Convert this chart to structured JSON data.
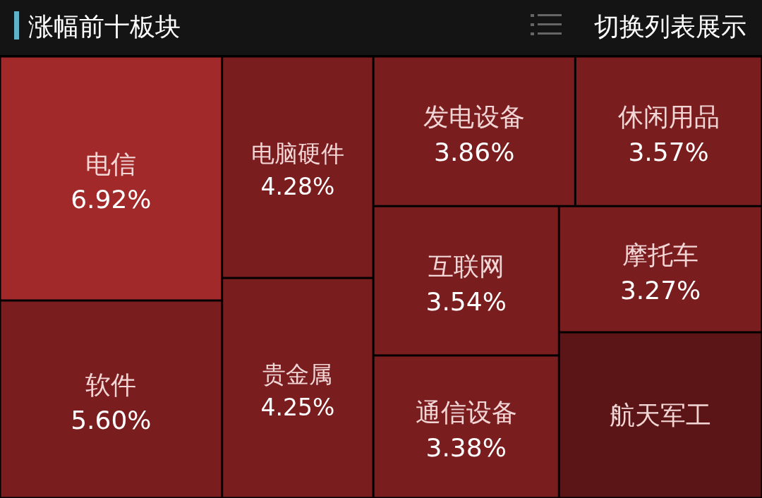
{
  "chart_data": {
    "type": "other",
    "title": "涨幅前十板块",
    "annotations": [
      "切换列表展示"
    ],
    "categories": [
      "电信",
      "软件",
      "电脑硬件",
      "贵金属",
      "发电设备",
      "休闲用品",
      "互联网",
      "通信设备",
      "摩托车",
      "航天军工"
    ],
    "values": [
      6.92,
      5.6,
      4.28,
      4.25,
      3.86,
      3.57,
      3.54,
      3.38,
      3.27,
      null
    ],
    "value_labels": [
      "6.92%",
      "5.60%",
      "4.28%",
      "4.25%",
      "3.86%",
      "3.57%",
      "3.54%",
      "3.38%",
      "3.27%",
      null
    ],
    "colors": [
      "#a2292a",
      "#791d1f",
      "#791d1f",
      "#791d1f",
      "#791d1f",
      "#791d1f",
      "#791d1f",
      "#791d1f",
      "#791d1f",
      "#5c1516"
    ]
  }
}
